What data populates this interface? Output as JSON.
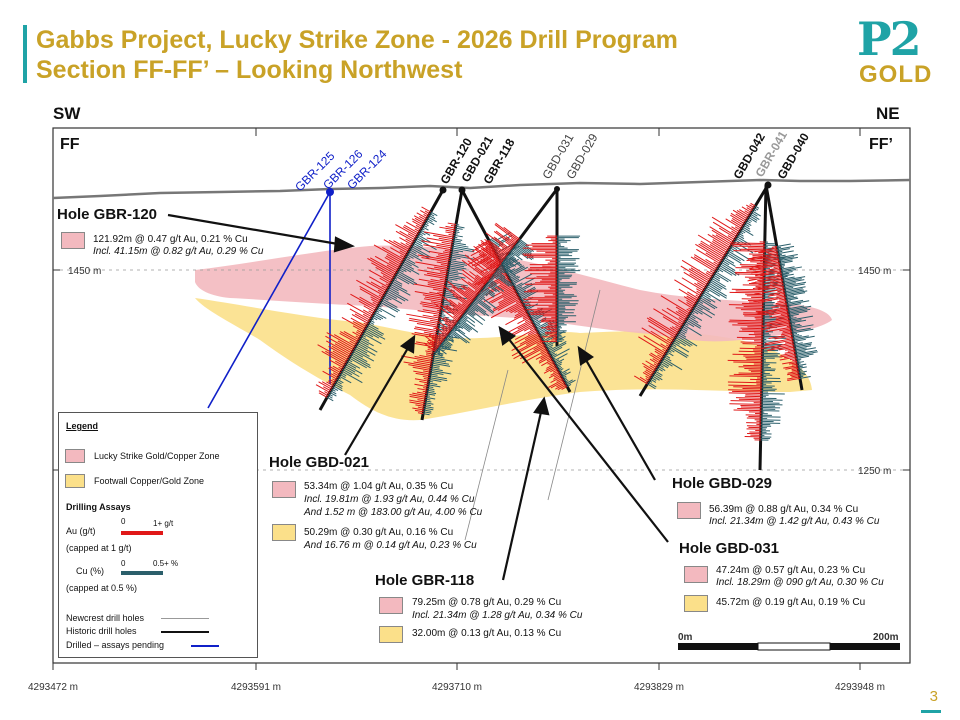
{
  "title": {
    "line1": "Gabbs Project, Lucky Strike Zone - 2026 Drill Program",
    "line2": "Section FF-FF’ – Looking Northwest"
  },
  "logo": {
    "top": "P2",
    "bottom": "GOLD"
  },
  "directions": {
    "left": "SW",
    "right": "NE"
  },
  "section_labels": {
    "left": "FF",
    "right": "FF’"
  },
  "elevations": {
    "upper": "1450 m",
    "lower": "1250 m"
  },
  "eastings": [
    "4293472 m",
    "4293591 m",
    "4293710 m",
    "4293829 m",
    "4293948 m"
  ],
  "drill_hole_labels": {
    "pending": [
      "GBR-125",
      "GBR-126",
      "GBR-124"
    ],
    "center": [
      "GBR-120",
      "GBD-021",
      "GBR-118"
    ],
    "newcrest": [
      "GBD-031",
      "GBD-029"
    ],
    "right": [
      "GBD-042",
      "GBR-041",
      "GBD-040"
    ]
  },
  "holes": {
    "gbr120": {
      "name": "Hole GBR-120",
      "pink": [
        "121.92m @  0.47 g/t Au, 0.21 % Cu",
        "Incl. 41.15m @  0.82 g/t Au, 0.29 % Cu"
      ]
    },
    "gbd021": {
      "name": "Hole GBD-021",
      "pink": [
        "53.34m @  1.04 g/t Au, 0.35 % Cu",
        "Incl. 19.81m @ 1.93 g/t Au, 0.44 % Cu",
        "And 1.52 m @ 183.00 g/t Au, 4.00 % Cu"
      ],
      "yellow": [
        "50.29m @ 0.30 g/t Au, 0.16 % Cu",
        "And 16.76 m @  0.14 g/t Au, 0.23 % Cu"
      ]
    },
    "gbr118": {
      "name": "Hole GBR-118",
      "pink": [
        "79.25m @  0.78 g/t Au, 0.29 % Cu",
        "Incl. 21.34m @ 1.28 g/t Au, 0.34 % Cu"
      ],
      "yellow": [
        "32.00m @  0.13 g/t Au, 0.13 % Cu"
      ]
    },
    "gbd029": {
      "name": "Hole GBD-029",
      "pink": [
        "56.39m @  0.88 g/t Au, 0.34 % Cu",
        "Incl. 21.34m @  1.42 g/t Au, 0.43 % Cu"
      ]
    },
    "gbd031": {
      "name": "Hole GBD-031",
      "pink": [
        "47.24m @  0.57 g/t Au, 0.23 % Cu",
        "Incl. 18.29m @ 090 g/t Au, 0.30 % Cu"
      ],
      "yellow": [
        "45.72m @  0.19 g/t Au, 0.19 % Cu"
      ]
    }
  },
  "legend": {
    "title": "Legend",
    "zones": [
      "Lucky Strike Gold/Copper Zone",
      "Footwall Copper/Gold Zone"
    ],
    "assays_title": "Drilling Assays",
    "au_label": "Au (g/t)",
    "au_min": "0",
    "au_max": "1+ g/t",
    "au_cap": "(capped at 1 g/t)",
    "cu_label": "Cu (%)",
    "cu_min": "0",
    "cu_max": "0.5+ %",
    "cu_cap": "(capped at 0.5 %)",
    "lines": [
      "Newcrest drill holes",
      "Historic drill holes",
      "Drilled – assays pending"
    ]
  },
  "scale": {
    "min": "0m",
    "max": "200m"
  },
  "page_number": "3",
  "colors": {
    "accent_teal": "#1fa3a6",
    "accent_gold": "#c9a227",
    "au_red": "#e01818",
    "cu_teal": "#2b5f6b",
    "pending_blue": "#1020c8",
    "zone_pink": "#f3b9bf",
    "zone_yellow": "#fbe08a"
  }
}
